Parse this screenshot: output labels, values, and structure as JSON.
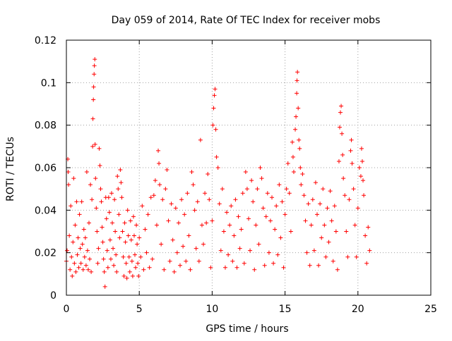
{
  "chart_data": {
    "type": "scatter",
    "title": "Day 059 of 2014, Rate Of TEC Index for receiver mobs",
    "xlabel": "GPS time / hours",
    "ylabel": "ROTI / TECUs",
    "xlim": [
      0,
      25
    ],
    "ylim": [
      0,
      0.12
    ],
    "x_ticks": [
      0,
      5,
      10,
      15,
      20,
      25
    ],
    "x_tick_labels": [
      "0",
      "5",
      "10",
      "15",
      "20",
      "25"
    ],
    "y_ticks": [
      0,
      0.02,
      0.04,
      0.06,
      0.08,
      0.1,
      0.12
    ],
    "y_tick_labels": [
      "0",
      "0.02",
      "0.04",
      "0.06",
      "0.08",
      "0.1",
      "0.12"
    ],
    "grid": true,
    "marker": "+",
    "color": "#ff0000",
    "series": [
      {
        "points": [
          [
            0.0,
            0.016
          ],
          [
            0.05,
            0.021
          ],
          [
            0.1,
            0.064
          ],
          [
            0.12,
            0.058
          ],
          [
            0.15,
            0.052
          ],
          [
            0.2,
            0.028
          ],
          [
            0.25,
            0.012
          ],
          [
            0.3,
            0.042
          ],
          [
            0.35,
            0.018
          ],
          [
            0.4,
            0.009
          ],
          [
            0.45,
            0.025
          ],
          [
            0.5,
            0.055
          ],
          [
            0.55,
            0.015
          ],
          [
            0.6,
            0.033
          ],
          [
            0.65,
            0.011
          ],
          [
            0.7,
            0.044
          ],
          [
            0.75,
            0.019
          ],
          [
            0.8,
            0.027
          ],
          [
            0.85,
            0.013
          ],
          [
            0.9,
            0.038
          ],
          [
            0.95,
            0.022
          ],
          [
            1.0,
            0.015
          ],
          [
            1.05,
            0.044
          ],
          [
            1.1,
            0.024
          ],
          [
            1.15,
            0.012
          ],
          [
            1.2,
            0.031
          ],
          [
            1.25,
            0.018
          ],
          [
            1.3,
            0.027
          ],
          [
            1.35,
            0.014
          ],
          [
            1.4,
            0.058
          ],
          [
            1.45,
            0.021
          ],
          [
            1.5,
            0.012
          ],
          [
            1.55,
            0.034
          ],
          [
            1.6,
            0.017
          ],
          [
            1.65,
            0.052
          ],
          [
            1.7,
            0.011
          ],
          [
            1.75,
            0.045
          ],
          [
            1.8,
            0.07
          ],
          [
            1.82,
            0.083
          ],
          [
            1.85,
            0.092
          ],
          [
            1.87,
            0.098
          ],
          [
            1.9,
            0.104
          ],
          [
            1.92,
            0.108
          ],
          [
            1.95,
            0.111
          ],
          [
            1.97,
            0.071
          ],
          [
            2.0,
            0.055
          ],
          [
            2.05,
            0.041
          ],
          [
            2.1,
            0.03
          ],
          [
            2.15,
            0.015
          ],
          [
            2.2,
            0.022
          ],
          [
            2.25,
            0.069
          ],
          [
            2.3,
            0.061
          ],
          [
            2.35,
            0.05
          ],
          [
            2.4,
            0.044
          ],
          [
            2.45,
            0.032
          ],
          [
            2.5,
            0.025
          ],
          [
            2.55,
            0.017
          ],
          [
            2.6,
            0.011
          ],
          [
            2.65,
            0.004
          ],
          [
            2.7,
            0.046
          ],
          [
            2.75,
            0.036
          ],
          [
            2.8,
            0.021
          ],
          [
            2.85,
            0.013
          ],
          [
            2.9,
            0.046
          ],
          [
            2.95,
            0.039
          ],
          [
            3.0,
            0.026
          ],
          [
            3.05,
            0.017
          ],
          [
            3.1,
            0.048
          ],
          [
            3.15,
            0.034
          ],
          [
            3.2,
            0.022
          ],
          [
            3.25,
            0.014
          ],
          [
            3.3,
            0.045
          ],
          [
            3.35,
            0.03
          ],
          [
            3.4,
            0.019
          ],
          [
            3.45,
            0.011
          ],
          [
            3.5,
            0.056
          ],
          [
            3.55,
            0.05
          ],
          [
            3.6,
            0.038
          ],
          [
            3.65,
            0.027
          ],
          [
            3.7,
            0.059
          ],
          [
            3.75,
            0.053
          ],
          [
            3.8,
            0.046
          ],
          [
            3.85,
            0.03
          ],
          [
            3.9,
            0.018
          ],
          [
            3.95,
            0.009
          ],
          [
            4.0,
            0.034
          ],
          [
            4.05,
            0.025
          ],
          [
            4.1,
            0.015
          ],
          [
            4.15,
            0.008
          ],
          [
            4.2,
            0.04
          ],
          [
            4.25,
            0.028
          ],
          [
            4.3,
            0.018
          ],
          [
            4.35,
            0.011
          ],
          [
            4.4,
            0.035
          ],
          [
            4.45,
            0.026
          ],
          [
            4.5,
            0.016
          ],
          [
            4.55,
            0.009
          ],
          [
            4.6,
            0.037
          ],
          [
            4.65,
            0.028
          ],
          [
            4.7,
            0.019
          ],
          [
            4.75,
            0.013
          ],
          [
            4.8,
            0.033
          ],
          [
            4.85,
            0.024
          ],
          [
            4.9,
            0.015
          ],
          [
            4.95,
            0.009
          ],
          [
            5.0,
            0.027
          ],
          [
            5.1,
            0.018
          ],
          [
            5.2,
            0.042
          ],
          [
            5.3,
            0.012
          ],
          [
            5.4,
            0.031
          ],
          [
            5.5,
            0.02
          ],
          [
            5.6,
            0.038
          ],
          [
            5.7,
            0.013
          ],
          [
            5.8,
            0.046
          ],
          [
            5.9,
            0.017
          ],
          [
            6.0,
            0.047
          ],
          [
            6.1,
            0.054
          ],
          [
            6.2,
            0.033
          ],
          [
            6.3,
            0.068
          ],
          [
            6.35,
            0.062
          ],
          [
            6.4,
            0.052
          ],
          [
            6.5,
            0.024
          ],
          [
            6.6,
            0.045
          ],
          [
            6.7,
            0.012
          ],
          [
            6.8,
            0.05
          ],
          [
            6.9,
            0.059
          ],
          [
            7.0,
            0.035
          ],
          [
            7.1,
            0.016
          ],
          [
            7.2,
            0.043
          ],
          [
            7.3,
            0.026
          ],
          [
            7.4,
            0.011
          ],
          [
            7.5,
            0.041
          ],
          [
            7.6,
            0.02
          ],
          [
            7.7,
            0.034
          ],
          [
            7.8,
            0.014
          ],
          [
            7.9,
            0.045
          ],
          [
            8.0,
            0.023
          ],
          [
            8.1,
            0.038
          ],
          [
            8.2,
            0.016
          ],
          [
            8.3,
            0.048
          ],
          [
            8.4,
            0.028
          ],
          [
            8.5,
            0.012
          ],
          [
            8.6,
            0.058
          ],
          [
            8.7,
            0.052
          ],
          [
            8.8,
            0.04
          ],
          [
            8.9,
            0.022
          ],
          [
            9.0,
            0.044
          ],
          [
            9.1,
            0.016
          ],
          [
            9.2,
            0.073
          ],
          [
            9.3,
            0.033
          ],
          [
            9.4,
            0.024
          ],
          [
            9.5,
            0.048
          ],
          [
            9.6,
            0.034
          ],
          [
            9.7,
            0.057
          ],
          [
            9.8,
            0.045
          ],
          [
            9.9,
            0.013
          ],
          [
            10.0,
            0.035
          ],
          [
            10.05,
            0.08
          ],
          [
            10.1,
            0.088
          ],
          [
            10.15,
            0.094
          ],
          [
            10.2,
            0.097
          ],
          [
            10.25,
            0.078
          ],
          [
            10.3,
            0.065
          ],
          [
            10.4,
            0.06
          ],
          [
            10.5,
            0.043
          ],
          [
            10.6,
            0.021
          ],
          [
            10.7,
            0.05
          ],
          [
            10.8,
            0.03
          ],
          [
            10.9,
            0.013
          ],
          [
            11.0,
            0.039
          ],
          [
            11.1,
            0.019
          ],
          [
            11.2,
            0.033
          ],
          [
            11.3,
            0.042
          ],
          [
            11.4,
            0.016
          ],
          [
            11.5,
            0.028
          ],
          [
            11.6,
            0.045
          ],
          [
            11.7,
            0.013
          ],
          [
            11.8,
            0.037
          ],
          [
            11.9,
            0.022
          ],
          [
            12.0,
            0.031
          ],
          [
            12.1,
            0.048
          ],
          [
            12.2,
            0.015
          ],
          [
            12.3,
            0.058
          ],
          [
            12.4,
            0.05
          ],
          [
            12.5,
            0.036
          ],
          [
            12.6,
            0.021
          ],
          [
            12.7,
            0.054
          ],
          [
            12.8,
            0.044
          ],
          [
            12.9,
            0.012
          ],
          [
            13.0,
            0.033
          ],
          [
            13.1,
            0.05
          ],
          [
            13.2,
            0.024
          ],
          [
            13.3,
            0.06
          ],
          [
            13.4,
            0.055
          ],
          [
            13.5,
            0.041
          ],
          [
            13.6,
            0.014
          ],
          [
            13.7,
            0.037
          ],
          [
            13.8,
            0.048
          ],
          [
            13.9,
            0.02
          ],
          [
            14.0,
            0.035
          ],
          [
            14.1,
            0.046
          ],
          [
            14.2,
            0.015
          ],
          [
            14.3,
            0.031
          ],
          [
            14.4,
            0.042
          ],
          [
            14.5,
            0.019
          ],
          [
            14.6,
            0.052
          ],
          [
            14.7,
            0.027
          ],
          [
            14.8,
            0.044
          ],
          [
            14.9,
            0.013
          ],
          [
            15.0,
            0.038
          ],
          [
            15.1,
            0.05
          ],
          [
            15.2,
            0.062
          ],
          [
            15.3,
            0.048
          ],
          [
            15.4,
            0.03
          ],
          [
            15.5,
            0.072
          ],
          [
            15.55,
            0.065
          ],
          [
            15.6,
            0.058
          ],
          [
            15.7,
            0.078
          ],
          [
            15.75,
            0.084
          ],
          [
            15.8,
            0.095
          ],
          [
            15.82,
            0.101
          ],
          [
            15.85,
            0.105
          ],
          [
            15.9,
            0.088
          ],
          [
            15.95,
            0.073
          ],
          [
            16.0,
            0.069
          ],
          [
            16.05,
            0.06
          ],
          [
            16.1,
            0.052
          ],
          [
            16.2,
            0.057
          ],
          [
            16.3,
            0.047
          ],
          [
            16.4,
            0.035
          ],
          [
            16.5,
            0.02
          ],
          [
            16.6,
            0.043
          ],
          [
            16.7,
            0.014
          ],
          [
            16.8,
            0.033
          ],
          [
            16.9,
            0.045
          ],
          [
            17.0,
            0.021
          ],
          [
            17.1,
            0.053
          ],
          [
            17.2,
            0.038
          ],
          [
            17.3,
            0.014
          ],
          [
            17.4,
            0.043
          ],
          [
            17.5,
            0.027
          ],
          [
            17.6,
            0.05
          ],
          [
            17.7,
            0.033
          ],
          [
            17.8,
            0.018
          ],
          [
            17.9,
            0.041
          ],
          [
            18.0,
            0.025
          ],
          [
            18.1,
            0.049
          ],
          [
            18.2,
            0.035
          ],
          [
            18.3,
            0.016
          ],
          [
            18.4,
            0.042
          ],
          [
            18.5,
            0.03
          ],
          [
            18.6,
            0.012
          ],
          [
            18.7,
            0.063
          ],
          [
            18.75,
            0.079
          ],
          [
            18.8,
            0.086
          ],
          [
            18.85,
            0.089
          ],
          [
            18.9,
            0.076
          ],
          [
            18.95,
            0.066
          ],
          [
            19.0,
            0.055
          ],
          [
            19.1,
            0.047
          ],
          [
            19.2,
            0.03
          ],
          [
            19.3,
            0.018
          ],
          [
            19.4,
            0.045
          ],
          [
            19.5,
            0.068
          ],
          [
            19.55,
            0.073
          ],
          [
            19.6,
            0.062
          ],
          [
            19.7,
            0.05
          ],
          [
            19.8,
            0.033
          ],
          [
            19.9,
            0.018
          ],
          [
            20.0,
            0.041
          ],
          [
            20.1,
            0.06
          ],
          [
            20.2,
            0.056
          ],
          [
            20.25,
            0.069
          ],
          [
            20.3,
            0.063
          ],
          [
            20.35,
            0.054
          ],
          [
            20.4,
            0.047
          ],
          [
            20.5,
            0.028
          ],
          [
            20.6,
            0.015
          ],
          [
            20.7,
            0.032
          ],
          [
            20.8,
            0.021
          ]
        ]
      }
    ]
  }
}
